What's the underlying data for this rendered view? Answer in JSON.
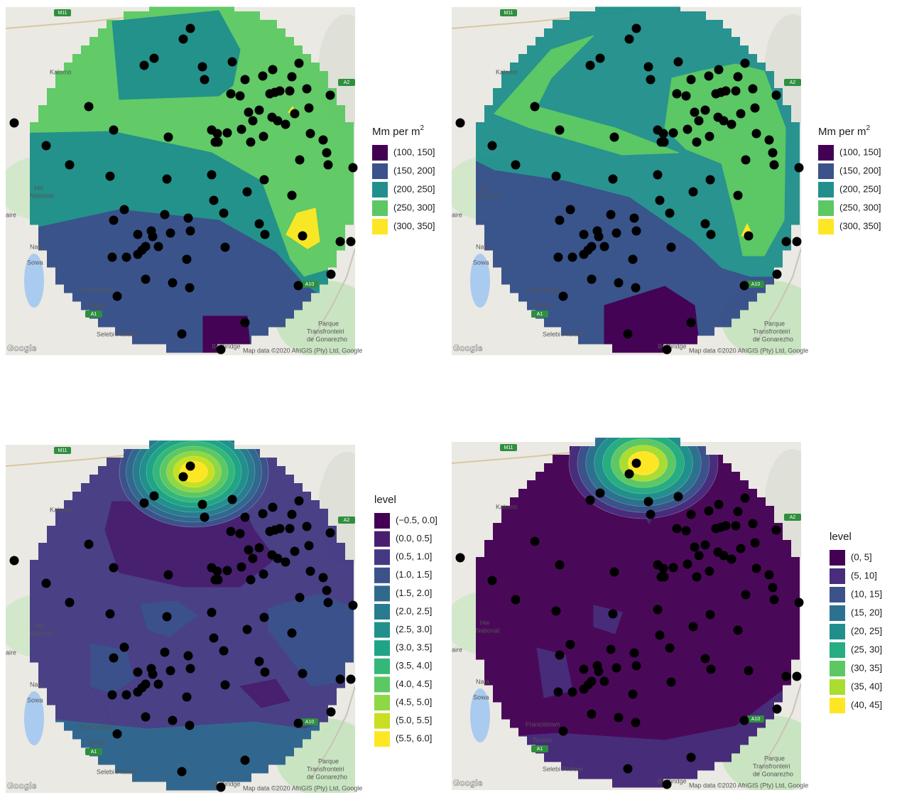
{
  "panels": [
    {
      "legend": {
        "title": "Mm per m",
        "title_superscript": "2",
        "items": [
          {
            "label": "(100, 150]",
            "color": "#440154"
          },
          {
            "label": "(150, 200]",
            "color": "#3B528B"
          },
          {
            "label": "(200, 250]",
            "color": "#21908C"
          },
          {
            "label": "(250, 300]",
            "color": "#5DC863"
          },
          {
            "label": "(300, 350]",
            "color": "#FDE725"
          }
        ]
      }
    },
    {
      "legend": {
        "title": "Mm per m",
        "title_superscript": "2",
        "items": [
          {
            "label": "(100, 150]",
            "color": "#440154"
          },
          {
            "label": "(150, 200]",
            "color": "#3B528B"
          },
          {
            "label": "(200, 250]",
            "color": "#21908C"
          },
          {
            "label": "(250, 300]",
            "color": "#5DC863"
          },
          {
            "label": "(300, 350]",
            "color": "#FDE725"
          }
        ]
      }
    },
    {
      "legend": {
        "title": "level",
        "items": [
          {
            "label": "(−0.5, 0.0]",
            "color": "#440154"
          },
          {
            "label": "(0.0, 0.5]",
            "color": "#481F70"
          },
          {
            "label": "(0.5, 1.0]",
            "color": "#443A83"
          },
          {
            "label": "(1.0, 1.5]",
            "color": "#3B528B"
          },
          {
            "label": "(1.5, 2.0]",
            "color": "#31688E"
          },
          {
            "label": "(2.0, 2.5]",
            "color": "#287C8E"
          },
          {
            "label": "(2.5, 3.0]",
            "color": "#21908C"
          },
          {
            "label": "(3.0, 3.5]",
            "color": "#20A486"
          },
          {
            "label": "(3.5, 4.0]",
            "color": "#35B779"
          },
          {
            "label": "(4.0, 4.5]",
            "color": "#5DC863"
          },
          {
            "label": "(4.5, 5.0]",
            "color": "#8FD744"
          },
          {
            "label": "(5.0, 5.5]",
            "color": "#C8E020"
          },
          {
            "label": "(5.5, 6.0]",
            "color": "#FDE725"
          }
        ]
      }
    },
    {
      "legend": {
        "title": "level",
        "items": [
          {
            "label": "(0, 5]",
            "color": "#440154"
          },
          {
            "label": "(5, 10]",
            "color": "#472D7B"
          },
          {
            "label": "(10, 15]",
            "color": "#3B528B"
          },
          {
            "label": "(15, 20]",
            "color": "#2C728E"
          },
          {
            "label": "(20, 25]",
            "color": "#21908C"
          },
          {
            "label": "(25, 30]",
            "color": "#27AD81"
          },
          {
            "label": "(30, 35]",
            "color": "#5DC863"
          },
          {
            "label": "(35, 40]",
            "color": "#AADC32"
          },
          {
            "label": "(40, 45]",
            "color": "#FDE725"
          }
        ]
      }
    }
  ],
  "map_labels": [
    "M11",
    "Kalomo",
    "Hw",
    "National",
    "aire",
    "Nata",
    "Sowa",
    "Francistown",
    "Tonota",
    "A1",
    "Selebi Phikwe",
    "Beitbridge",
    "A2",
    "A10",
    "Parque",
    "Transfronteiri",
    "de Gonarezho",
    "Map data ©2020 AfriGIS (Pty) Ltd, Google",
    "Google"
  ]
}
